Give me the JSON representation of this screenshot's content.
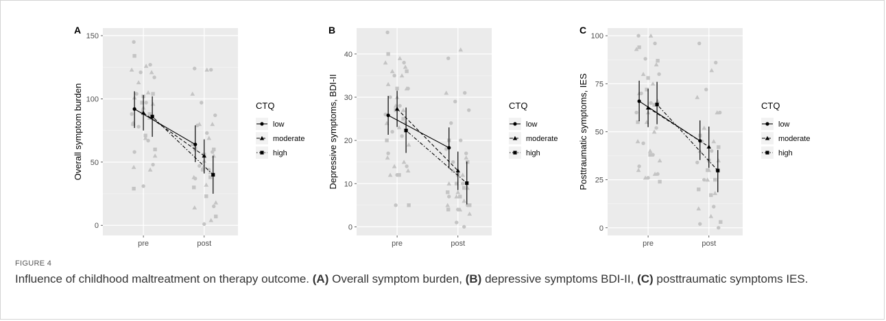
{
  "chart_data": [
    {
      "panel": "A",
      "type": "scatter",
      "ylabel": "Overall symptom burden",
      "categories": [
        "pre",
        "post"
      ],
      "yticks": [
        0,
        50,
        100,
        150
      ],
      "ylim": [
        -8,
        156
      ],
      "legend_title": "CTQ",
      "legend_placement": "right",
      "grid": true,
      "series": [
        {
          "name": "low",
          "shape": "circle",
          "linetype": "solid",
          "means": [
            92,
            64
          ],
          "lower": [
            77,
            50
          ],
          "upper": [
            106,
            79
          ],
          "points": {
            "pre": [
              145,
              127,
              121,
              117,
              104,
              97,
              88,
              85,
              78,
              67,
              58,
              48,
              31
            ],
            "post": [
              124,
              123,
              97,
              87,
              79,
              73,
              64,
              58,
              47,
              44,
              37,
              15,
              1
            ]
          }
        },
        {
          "name": "moderate",
          "shape": "triangle",
          "linetype": "dashed",
          "means": [
            89,
            55
          ],
          "lower": [
            75,
            41
          ],
          "upper": [
            103,
            68
          ],
          "points": {
            "pre": [
              126,
              123,
              121,
              113,
              105,
              101,
              96,
              93,
              90,
              85,
              81,
              69,
              55,
              46,
              44
            ],
            "post": [
              123,
              104,
              80,
              80,
              69,
              60,
              55,
              51,
              45,
              42,
              38,
              32,
              18,
              14,
              4
            ]
          }
        },
        {
          "name": "high",
          "shape": "square",
          "linetype": "dotdash",
          "means": [
            86,
            40
          ],
          "lower": [
            70,
            25
          ],
          "upper": [
            102,
            55
          ],
          "points": {
            "pre": [
              134,
              104,
              102,
              97,
              88,
              80,
              71,
              60,
              29
            ],
            "post": [
              61,
              60,
              56,
              44,
              38,
              30,
              23,
              7
            ]
          }
        }
      ]
    },
    {
      "panel": "B",
      "type": "scatter",
      "ylabel": "Depressive symptoms, BDI-II",
      "categories": [
        "pre",
        "post"
      ],
      "yticks": [
        0,
        10,
        20,
        30,
        40
      ],
      "ylim": [
        -2,
        46
      ],
      "legend_title": "CTQ",
      "legend_placement": "right",
      "grid": true,
      "series": [
        {
          "name": "low",
          "shape": "circle",
          "linetype": "solid",
          "means": [
            25.8,
            18.3
          ],
          "lower": [
            21.3,
            13.5
          ],
          "upper": [
            30.3,
            23.0
          ],
          "points": {
            "pre": [
              45,
              38,
              35,
              32,
              30,
              28,
              26,
              24,
              22,
              21,
              17,
              14,
              12,
              5
            ],
            "post": [
              39,
              31,
              29,
              27,
              24,
              20,
              18,
              17,
              15,
              10,
              7,
              5,
              4,
              1,
              0
            ]
          }
        },
        {
          "name": "moderate",
          "shape": "triangle",
          "linetype": "dashed",
          "means": [
            27.3,
            13.0
          ],
          "lower": [
            23.1,
            8.5
          ],
          "upper": [
            31.5,
            17.4
          ],
          "points": {
            "pre": [
              39,
              38,
              37,
              36,
              35,
              33,
              32,
              30,
              28,
              27,
              24,
              23,
              19,
              16,
              15,
              14,
              13,
              12
            ],
            "post": [
              41,
              31,
              16,
              13,
              12,
              10,
              9,
              8,
              7,
              6,
              5,
              4,
              3
            ]
          }
        },
        {
          "name": "high",
          "shape": "square",
          "linetype": "dotdash",
          "means": [
            22.3,
            10.1
          ],
          "lower": [
            17.1,
            5.2
          ],
          "upper": [
            27.6,
            15.1
          ],
          "points": {
            "pre": [
              40,
              36,
              32,
              27,
              25,
              20,
              12,
              5
            ],
            "post": [
              20,
              15,
              12,
              10,
              9,
              8,
              7,
              5,
              4
            ]
          }
        }
      ]
    },
    {
      "panel": "C",
      "type": "scatter",
      "ylabel": "Posttraumatic symptoms, IES",
      "categories": [
        "pre",
        "post"
      ],
      "yticks": [
        0,
        25,
        50,
        75,
        100
      ],
      "ylim": [
        -4,
        104
      ],
      "legend_title": "CTQ",
      "legend_placement": "right",
      "grid": true,
      "series": [
        {
          "name": "low",
          "shape": "circle",
          "linetype": "solid",
          "means": [
            65.9,
            45.3
          ],
          "lower": [
            55.5,
            35.3
          ],
          "upper": [
            76.6,
            55.9
          ],
          "points": {
            "pre": [
              100,
              96,
              88,
              80,
              70,
              65,
              60,
              52,
              44,
              38,
              32,
              28,
              26
            ],
            "post": [
              96,
              86,
              72,
              60,
              45,
              40,
              34,
              30,
              25,
              11,
              2,
              0
            ]
          }
        },
        {
          "name": "moderate",
          "shape": "triangle",
          "linetype": "dashed",
          "means": [
            62.5,
            42.2
          ],
          "lower": [
            52.4,
            31.2
          ],
          "upper": [
            72.4,
            52.7
          ],
          "points": {
            "pre": [
              100,
              93,
              85,
              80,
              75,
              70,
              66,
              60,
              55,
              50,
              45,
              40,
              35,
              30,
              28,
              26
            ],
            "post": [
              82,
              68,
              60,
              52,
              45,
              40,
              35,
              30,
              25,
              18,
              10,
              6
            ]
          }
        },
        {
          "name": "high",
          "shape": "square",
          "linetype": "dotdash",
          "means": [
            64.2,
            29.8
          ],
          "lower": [
            53.9,
            18.5
          ],
          "upper": [
            76.0,
            40.5
          ],
          "points": {
            "pre": [
              94,
              87,
              78,
              72,
              64,
              55,
              38,
              24
            ],
            "post": [
              48,
              42,
              35,
              30,
              25,
              20,
              17,
              3
            ]
          }
        }
      ]
    }
  ],
  "caption": {
    "label": "FIGURE 4",
    "text_plain_1": "Influence of childhood maltreatment on therapy outcome. ",
    "bold_a": "(A)",
    "text_a": " Overall symptom burden, ",
    "bold_b": "(B)",
    "text_b": " depressive symptoms BDI-II, ",
    "bold_c": "(C)",
    "text_c": " posttraumatic symptoms IES."
  }
}
